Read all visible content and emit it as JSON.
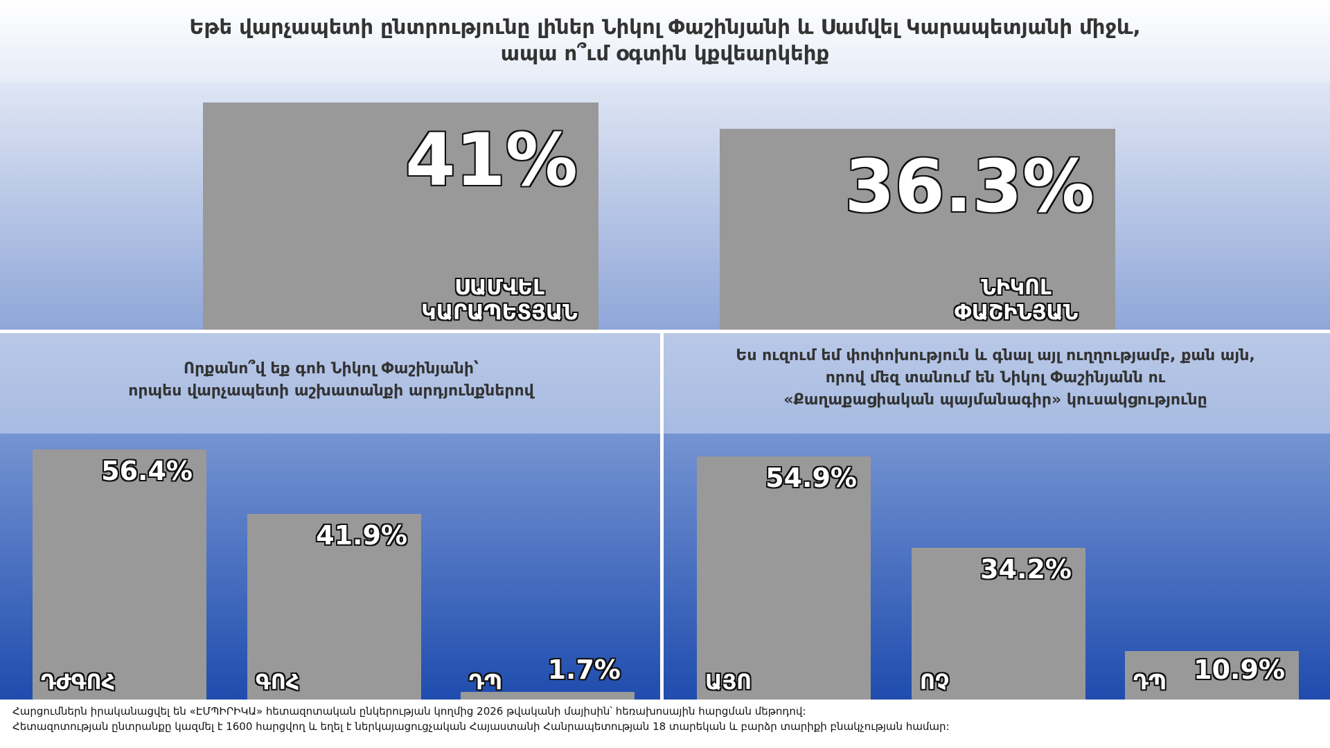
{
  "chart_data": [
    {
      "type": "bar",
      "title_lines": [
        "Եթե վարչապետի ընտրությունը լիներ Նիկոլ Փաշինյանի և Սամվել Կարապետյանի միջև,",
        "ապա ո՞ւմ օգտին կքվեարկեիք"
      ],
      "categories": [
        "ՍԱՄՎԵԼ ԿԱՐԱՊԵՏՅԱՆ",
        "ՆԻԿՈԼ ՓԱՇԻՆՅԱՆ"
      ],
      "values": [
        41,
        36.3
      ],
      "value_labels": [
        "41%",
        "36.3%"
      ],
      "color": "#999999"
    },
    {
      "type": "bar",
      "title_lines": [
        "Որքանո՞վ եք գոհ Նիկոլ Փաշինյանի՝",
        "որպես վարչապետի աշխատանքի արդյունքներով"
      ],
      "categories": [
        "ԴԺԳՈՀ",
        "ԳՈՀ",
        "ԴՊ"
      ],
      "values": [
        56.4,
        41.9,
        1.7
      ],
      "value_labels": [
        "56.4%",
        "41.9%",
        "1.7%"
      ],
      "color": "#999999"
    },
    {
      "type": "bar",
      "title_lines": [
        "Ես ուզում եմ փոփոխություն և գնալ այլ ուղղությամբ, քան այն,",
        "որով մեզ տանում են Նիկոլ Փաշինյանն ու",
        "«Քաղաքացիական պայմանագիր» կուսակցությունը"
      ],
      "categories": [
        "ԱՅՈ",
        "ՈՉ",
        "ԴՊ"
      ],
      "values": [
        54.9,
        34.2,
        10.9
      ],
      "value_labels": [
        "54.9%",
        "34.2%",
        "10.9%"
      ],
      "color": "#999999"
    }
  ],
  "footnote_lines": [
    "Հարցումներն իրականացվել են «ԷՄՊԻՐԻԿԱ» հետազոտական ընկերության կողմից 2026 թվականի մայիսին՝ հեռախոսային հարցման մեթոդով:",
    "Հետազոտության ընտրանքը կազմել է 1600 հարցվող և եղել է ներկայացուցչական Հայաստանի Հանրապետության 18 տարեկան և բարձր տարիքի բնակչության համար:"
  ]
}
